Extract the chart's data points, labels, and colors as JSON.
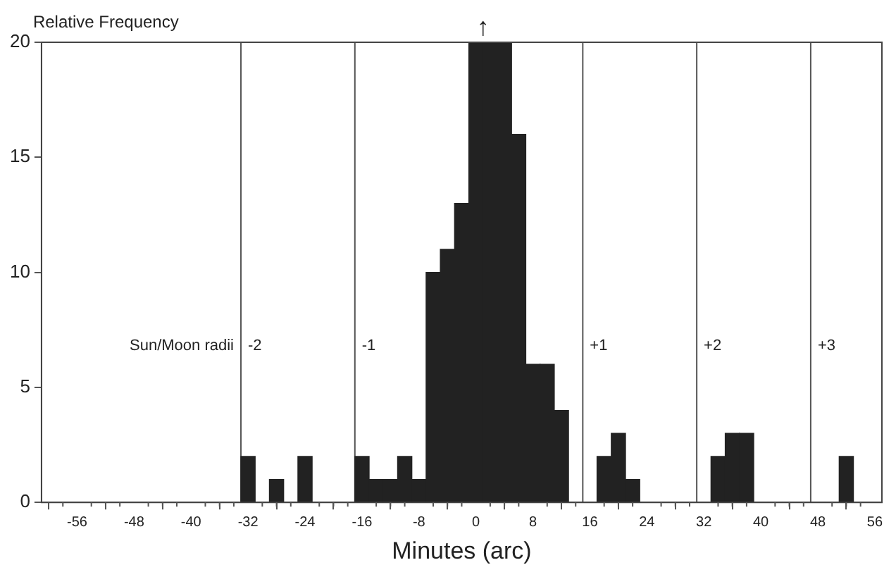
{
  "chart_data": {
    "type": "histogram",
    "ylabel": "Relative Frequency",
    "xlabel": "Minutes (arc)",
    "bins": [
      -33,
      -31,
      -29,
      -27,
      -25,
      -23,
      -21,
      -19,
      -17,
      -15,
      -13,
      -11,
      -9,
      -7,
      -5,
      -3,
      -1,
      1,
      3,
      5,
      7,
      9,
      11,
      13,
      15,
      17,
      19,
      21,
      23,
      25,
      27,
      29,
      31,
      33,
      35,
      37,
      39,
      41,
      43,
      45,
      47,
      49,
      51,
      53
    ],
    "values": [
      2,
      0,
      1,
      0,
      2,
      0,
      0,
      0,
      2,
      1,
      1,
      2,
      1,
      10,
      11,
      13,
      20,
      20,
      20,
      16,
      6,
      6,
      4,
      0,
      0,
      2,
      3,
      1,
      0,
      0,
      0,
      0,
      0,
      2,
      3,
      3,
      0,
      0,
      0,
      0,
      0,
      0,
      2
    ],
    "color": "#222222",
    "xlim": [
      -61,
      57
    ],
    "xticks": [
      {
        "value": -60,
        "label": null
      },
      {
        "value": -58,
        "label": null
      },
      -56,
      {
        "value": -54,
        "label": null
      },
      {
        "value": -52,
        "label": null
      },
      {
        "value": -50,
        "label": null
      },
      -48,
      {
        "value": -46,
        "label": null
      },
      {
        "value": -44,
        "label": null
      },
      {
        "value": -42,
        "label": null
      },
      -40,
      {
        "value": -38,
        "label": null
      },
      {
        "value": -36,
        "label": null
      },
      {
        "value": -34,
        "label": null
      },
      -32,
      {
        "value": -30,
        "label": null
      },
      {
        "value": -28,
        "label": null
      },
      {
        "value": -26,
        "label": null
      },
      -24,
      {
        "value": -22,
        "label": null
      },
      {
        "value": -20,
        "label": null
      },
      {
        "value": -18,
        "label": null
      },
      -16,
      {
        "value": -14,
        "label": null
      },
      {
        "value": -12,
        "label": null
      },
      {
        "value": -10,
        "label": null
      },
      -8,
      {
        "value": -6,
        "label": null
      },
      {
        "value": -4,
        "label": null
      },
      {
        "value": -2,
        "label": null
      },
      0,
      {
        "value": 2,
        "label": null
      },
      {
        "value": 4,
        "label": null
      },
      {
        "value": 6,
        "label": null
      },
      8,
      {
        "value": 10,
        "label": null
      },
      {
        "value": 12,
        "label": null
      },
      {
        "value": 14,
        "label": null
      },
      16,
      {
        "value": 18,
        "label": null
      },
      {
        "value": 20,
        "label": null
      },
      {
        "value": 22,
        "label": null
      },
      24,
      {
        "value": 26,
        "label": null
      },
      {
        "value": 28,
        "label": null
      },
      {
        "value": 30,
        "label": null
      },
      32,
      {
        "value": 34,
        "label": null
      },
      {
        "value": 36,
        "label": null
      },
      {
        "value": 38,
        "label": null
      },
      40,
      {
        "value": 42,
        "label": null
      },
      {
        "value": 44,
        "label": null
      },
      {
        "value": 46,
        "label": null
      },
      48,
      {
        "value": 50,
        "label": null
      },
      {
        "value": 52,
        "label": null
      },
      {
        "value": 54,
        "label": null
      },
      56
    ],
    "ylim": [
      0,
      20
    ],
    "yticks": [
      0,
      5,
      10,
      15,
      20
    ],
    "grid": false,
    "legend": false,
    "ref_lines": [
      {
        "axis": "x",
        "value": -33,
        "color": "#555555"
      },
      {
        "axis": "x",
        "value": -17,
        "color": "#555555"
      },
      {
        "axis": "x",
        "value": 15,
        "color": "#555555"
      },
      {
        "axis": "x",
        "value": 31,
        "color": "#555555"
      },
      {
        "axis": "x",
        "value": 47,
        "color": "#555555"
      }
    ],
    "annotations": [
      "Sun/Moon radii",
      "-2",
      "-1",
      "+1",
      "+2",
      "+3",
      {
        "text": "↑",
        "x": 1,
        "y": 20
      }
    ]
  }
}
